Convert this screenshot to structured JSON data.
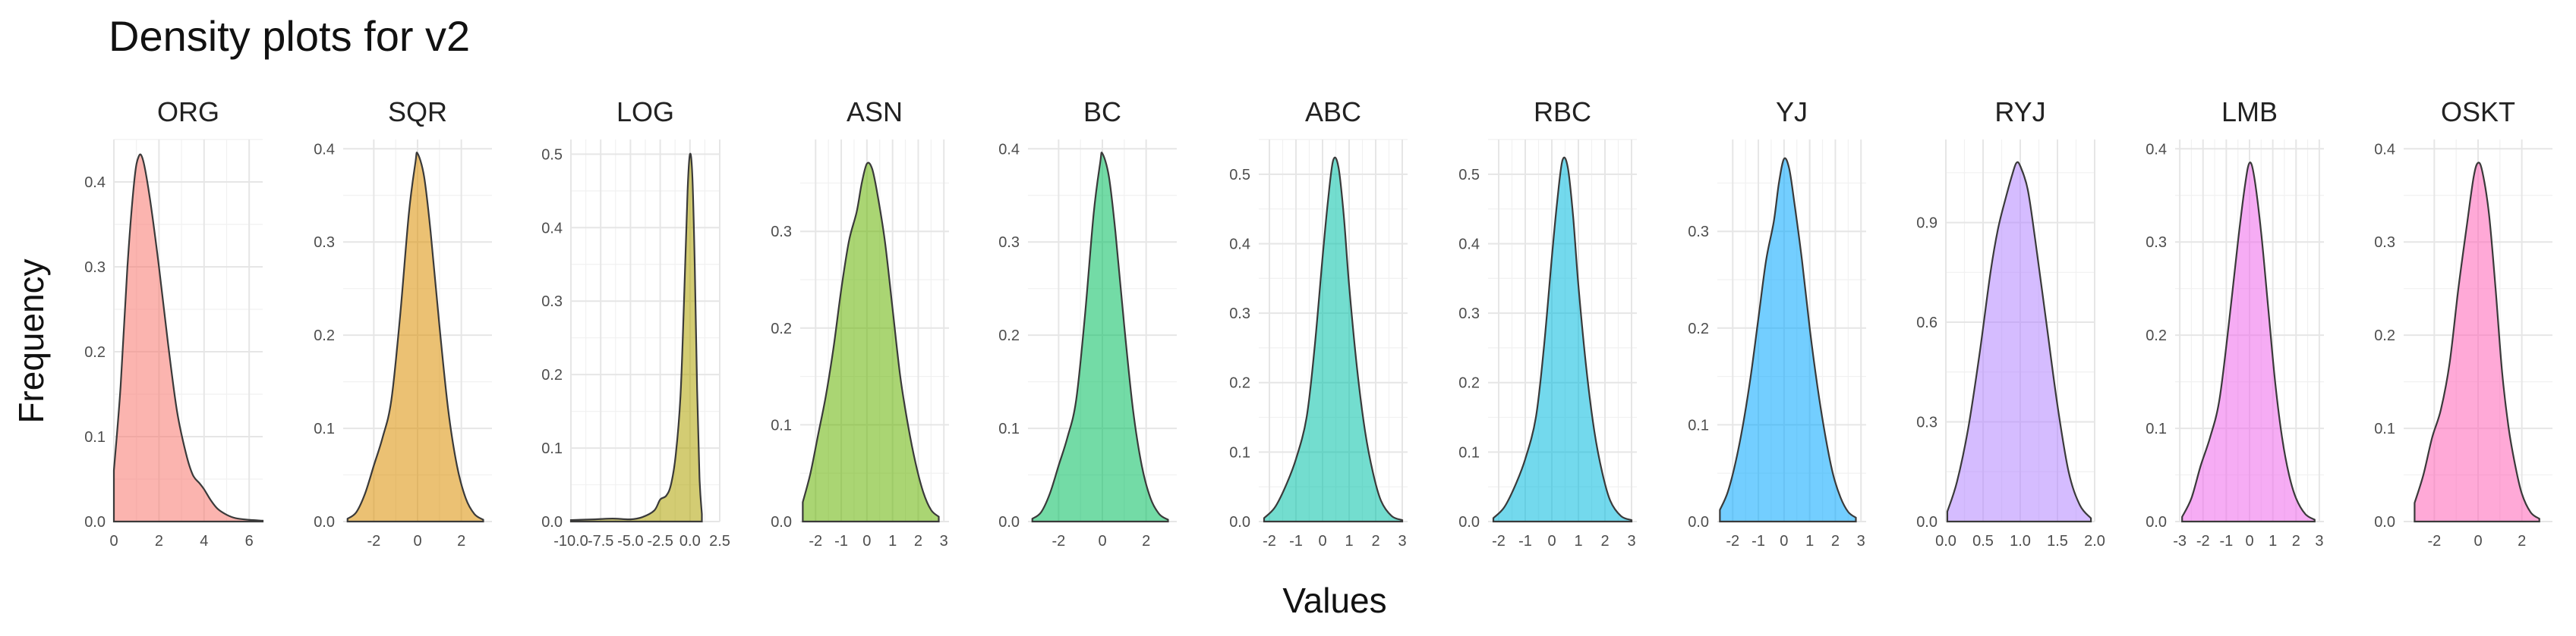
{
  "chart_data": {
    "type": "area",
    "title": "Density plots for v2",
    "xlabel": "Values",
    "ylabel": "Frequency",
    "facets": [
      {
        "name": "ORG",
        "color": "#F8766D",
        "xlim": [
          0,
          6.6
        ],
        "ylim": [
          0,
          0.45
        ],
        "xticks": [
          0,
          2,
          4,
          6
        ],
        "xtick_labels": [
          "0",
          "2",
          "4",
          "6"
        ],
        "yticks": [
          0,
          0.1,
          0.2,
          0.3,
          0.4
        ],
        "ytick_labels": [
          "0.0",
          "0.1",
          "0.2",
          "0.3",
          "0.4"
        ],
        "x": [
          0,
          0.3,
          0.6,
          0.9,
          1.1,
          1.3,
          1.6,
          2.0,
          2.4,
          2.8,
          3.2,
          3.5,
          3.8,
          4.0,
          4.3,
          4.6,
          5.0,
          5.4,
          6.0,
          6.6
        ],
        "y": [
          0.06,
          0.16,
          0.3,
          0.4,
          0.43,
          0.425,
          0.38,
          0.3,
          0.21,
          0.13,
          0.08,
          0.055,
          0.045,
          0.038,
          0.025,
          0.015,
          0.008,
          0.004,
          0.002,
          0.001
        ]
      },
      {
        "name": "SQR",
        "color": "#DB8E00",
        "xlim": [
          -3.4,
          3.4
        ],
        "ylim": [
          0,
          0.41
        ],
        "xticks": [
          -2,
          0,
          2
        ],
        "xtick_labels": [
          "-2",
          "0",
          "2"
        ],
        "yticks": [
          0,
          0.1,
          0.2,
          0.3,
          0.4
        ],
        "ytick_labels": [
          "0.0",
          "0.1",
          "0.2",
          "0.3",
          "0.4"
        ],
        "x": [
          -3.2,
          -2.8,
          -2.4,
          -2.0,
          -1.6,
          -1.2,
          -0.8,
          -0.4,
          -0.1,
          0.0,
          0.3,
          0.6,
          1.0,
          1.4,
          1.8,
          2.2,
          2.6,
          3.0
        ],
        "y": [
          0.003,
          0.01,
          0.03,
          0.06,
          0.09,
          0.13,
          0.22,
          0.33,
          0.385,
          0.395,
          0.37,
          0.31,
          0.21,
          0.12,
          0.06,
          0.025,
          0.008,
          0.002
        ]
      },
      {
        "name": "LOG",
        "color": "#AEA200",
        "xlim": [
          -10,
          2.5
        ],
        "ylim": [
          0,
          0.52
        ],
        "xticks": [
          -10,
          -7.5,
          -5,
          -2.5,
          0,
          2.5
        ],
        "xtick_labels": [
          "-10.0",
          "-7.5",
          "-5.0",
          "-2.5",
          "0.0",
          "2.5"
        ],
        "yticks": [
          0,
          0.1,
          0.2,
          0.3,
          0.4,
          0.5
        ],
        "ytick_labels": [
          "0.0",
          "0.1",
          "0.2",
          "0.3",
          "0.4",
          "0.5"
        ],
        "x": [
          -10,
          -8,
          -6.5,
          -5,
          -4,
          -3,
          -2.5,
          -2,
          -1.6,
          -1.2,
          -0.8,
          -0.5,
          -0.2,
          0,
          0.2,
          0.4,
          0.6,
          0.8,
          1.0
        ],
        "y": [
          0.002,
          0.003,
          0.004,
          0.003,
          0.006,
          0.015,
          0.03,
          0.035,
          0.05,
          0.09,
          0.17,
          0.3,
          0.45,
          0.5,
          0.47,
          0.35,
          0.18,
          0.06,
          0.01
        ]
      },
      {
        "name": "ASN",
        "color": "#64B200",
        "xlim": [
          -2.6,
          3.2
        ],
        "ylim": [
          0,
          0.395
        ],
        "xticks": [
          -2,
          -1,
          0,
          1,
          2,
          3
        ],
        "xtick_labels": [
          "-2",
          "-1",
          "0",
          "1",
          "2",
          "3"
        ],
        "yticks": [
          0,
          0.1,
          0.2,
          0.3
        ],
        "ytick_labels": [
          "0.0",
          "0.1",
          "0.2",
          "0.3"
        ],
        "x": [
          -2.5,
          -2.2,
          -1.9,
          -1.6,
          -1.3,
          -1.0,
          -0.7,
          -0.4,
          -0.2,
          0.0,
          0.2,
          0.4,
          0.7,
          1.0,
          1.3,
          1.6,
          1.9,
          2.2,
          2.5,
          2.8
        ],
        "y": [
          0.02,
          0.05,
          0.09,
          0.13,
          0.18,
          0.24,
          0.29,
          0.32,
          0.35,
          0.37,
          0.365,
          0.34,
          0.29,
          0.22,
          0.15,
          0.1,
          0.06,
          0.03,
          0.012,
          0.005
        ]
      },
      {
        "name": "BC",
        "color": "#00BD5C",
        "xlim": [
          -3.4,
          3.4
        ],
        "ylim": [
          0,
          0.41
        ],
        "xticks": [
          -2,
          0,
          2
        ],
        "xtick_labels": [
          "-2",
          "0",
          "2"
        ],
        "yticks": [
          0,
          0.1,
          0.2,
          0.3,
          0.4
        ],
        "ytick_labels": [
          "0.0",
          "0.1",
          "0.2",
          "0.3",
          "0.4"
        ],
        "x": [
          -3.2,
          -2.8,
          -2.4,
          -2.0,
          -1.6,
          -1.2,
          -0.8,
          -0.4,
          -0.1,
          0.0,
          0.3,
          0.6,
          1.0,
          1.4,
          1.8,
          2.2,
          2.6,
          3.0
        ],
        "y": [
          0.003,
          0.01,
          0.03,
          0.06,
          0.09,
          0.13,
          0.22,
          0.33,
          0.385,
          0.395,
          0.37,
          0.31,
          0.21,
          0.12,
          0.06,
          0.025,
          0.008,
          0.002
        ]
      },
      {
        "name": "ABC",
        "color": "#00C1A7",
        "xlim": [
          -2.4,
          3.2
        ],
        "ylim": [
          0,
          0.55
        ],
        "xticks": [
          -2,
          -1,
          0,
          1,
          2,
          3
        ],
        "xtick_labels": [
          "-2",
          "-1",
          "0",
          "1",
          "2",
          "3"
        ],
        "yticks": [
          0,
          0.1,
          0.2,
          0.3,
          0.4,
          0.5
        ],
        "ytick_labels": [
          "0.0",
          "0.1",
          "0.2",
          "0.3",
          "0.4",
          "0.5"
        ],
        "x": [
          -2.2,
          -1.8,
          -1.4,
          -1.0,
          -0.6,
          -0.3,
          0.0,
          0.2,
          0.4,
          0.6,
          0.8,
          1.0,
          1.3,
          1.6,
          1.9,
          2.2,
          2.6,
          3.0
        ],
        "y": [
          0.005,
          0.02,
          0.05,
          0.09,
          0.15,
          0.25,
          0.38,
          0.46,
          0.52,
          0.51,
          0.44,
          0.34,
          0.22,
          0.13,
          0.07,
          0.03,
          0.008,
          0.002
        ]
      },
      {
        "name": "RBC",
        "color": "#00BADE",
        "xlim": [
          -2.4,
          3.2
        ],
        "ylim": [
          0,
          0.55
        ],
        "xticks": [
          -2,
          -1,
          0,
          1,
          2,
          3
        ],
        "xtick_labels": [
          "-2",
          "-1",
          "0",
          "1",
          "2",
          "3"
        ],
        "yticks": [
          0,
          0.1,
          0.2,
          0.3,
          0.4,
          0.5
        ],
        "ytick_labels": [
          "0.0",
          "0.1",
          "0.2",
          "0.3",
          "0.4",
          "0.5"
        ],
        "x": [
          -2.2,
          -1.8,
          -1.4,
          -1.0,
          -0.6,
          -0.3,
          0.0,
          0.2,
          0.4,
          0.6,
          0.8,
          1.0,
          1.3,
          1.6,
          1.9,
          2.2,
          2.6,
          3.0
        ],
        "y": [
          0.005,
          0.02,
          0.05,
          0.09,
          0.15,
          0.25,
          0.38,
          0.46,
          0.52,
          0.51,
          0.44,
          0.34,
          0.22,
          0.13,
          0.07,
          0.03,
          0.008,
          0.002
        ]
      },
      {
        "name": "YJ",
        "color": "#00A6FF",
        "xlim": [
          -2.6,
          3.2
        ],
        "ylim": [
          0,
          0.395
        ],
        "xticks": [
          -2,
          -1,
          0,
          1,
          2,
          3
        ],
        "xtick_labels": [
          "-2",
          "-1",
          "0",
          "1",
          "2",
          "3"
        ],
        "yticks": [
          0,
          0.1,
          0.2,
          0.3
        ],
        "ytick_labels": [
          "0.0",
          "0.1",
          "0.2",
          "0.3"
        ],
        "x": [
          -2.5,
          -2.2,
          -1.9,
          -1.6,
          -1.3,
          -1.0,
          -0.7,
          -0.4,
          -0.2,
          0.0,
          0.2,
          0.4,
          0.7,
          1.0,
          1.3,
          1.6,
          1.9,
          2.2,
          2.5,
          2.8
        ],
        "y": [
          0.012,
          0.03,
          0.06,
          0.1,
          0.15,
          0.21,
          0.27,
          0.31,
          0.35,
          0.375,
          0.365,
          0.33,
          0.27,
          0.2,
          0.14,
          0.09,
          0.05,
          0.025,
          0.01,
          0.004
        ]
      },
      {
        "name": "RYJ",
        "color": "#B385FF",
        "xlim": [
          0,
          2.0
        ],
        "ylim": [
          0,
          1.15
        ],
        "xticks": [
          0,
          0.5,
          1.0,
          1.5,
          2.0
        ],
        "xtick_labels": [
          "0.0",
          "0.5",
          "1.0",
          "1.5",
          "2.0"
        ],
        "yticks": [
          0,
          0.3,
          0.6,
          0.9
        ],
        "ytick_labels": [
          "0.0",
          "0.3",
          "0.6",
          "0.9"
        ],
        "x": [
          0.02,
          0.15,
          0.3,
          0.45,
          0.6,
          0.7,
          0.8,
          0.9,
          0.95,
          1.0,
          1.1,
          1.2,
          1.35,
          1.5,
          1.65,
          1.8,
          1.95
        ],
        "y": [
          0.03,
          0.12,
          0.28,
          0.5,
          0.75,
          0.88,
          0.97,
          1.05,
          1.08,
          1.07,
          1.0,
          0.85,
          0.6,
          0.35,
          0.15,
          0.05,
          0.01
        ]
      },
      {
        "name": "LMB",
        "color": "#EF67EB",
        "xlim": [
          -3.2,
          3.2
        ],
        "ylim": [
          0,
          0.41
        ],
        "xticks": [
          -3,
          -2,
          -1,
          0,
          1,
          2,
          3
        ],
        "xtick_labels": [
          "-3",
          "-2",
          "-1",
          "0",
          "1",
          "2",
          "3"
        ],
        "yticks": [
          0,
          0.1,
          0.2,
          0.3,
          0.4
        ],
        "ytick_labels": [
          "0.0",
          "0.1",
          "0.2",
          "0.3",
          "0.4"
        ],
        "x": [
          -2.9,
          -2.5,
          -2.1,
          -1.7,
          -1.3,
          -0.9,
          -0.5,
          -0.2,
          0.0,
          0.2,
          0.5,
          0.8,
          1.1,
          1.4,
          1.7,
          2.0,
          2.4,
          2.8
        ],
        "y": [
          0.005,
          0.025,
          0.06,
          0.09,
          0.13,
          0.21,
          0.3,
          0.36,
          0.385,
          0.37,
          0.31,
          0.23,
          0.15,
          0.09,
          0.05,
          0.025,
          0.008,
          0.002
        ]
      },
      {
        "name": "OSKT",
        "color": "#FF63B6",
        "xlim": [
          -3.4,
          3.4
        ],
        "ylim": [
          0,
          0.41
        ],
        "xticks": [
          -2,
          0,
          2
        ],
        "xtick_labels": [
          "-2",
          "0",
          "2"
        ],
        "yticks": [
          0,
          0.1,
          0.2,
          0.3,
          0.4
        ],
        "ytick_labels": [
          "0.0",
          "0.1",
          "0.2",
          "0.3",
          "0.4"
        ],
        "x": [
          -2.9,
          -2.5,
          -2.1,
          -1.7,
          -1.3,
          -0.9,
          -0.5,
          -0.2,
          0.0,
          0.2,
          0.5,
          0.8,
          1.1,
          1.4,
          1.7,
          2.0,
          2.4,
          2.8
        ],
        "y": [
          0.02,
          0.05,
          0.09,
          0.12,
          0.17,
          0.25,
          0.32,
          0.37,
          0.385,
          0.375,
          0.33,
          0.25,
          0.16,
          0.1,
          0.06,
          0.03,
          0.01,
          0.003
        ]
      }
    ]
  }
}
